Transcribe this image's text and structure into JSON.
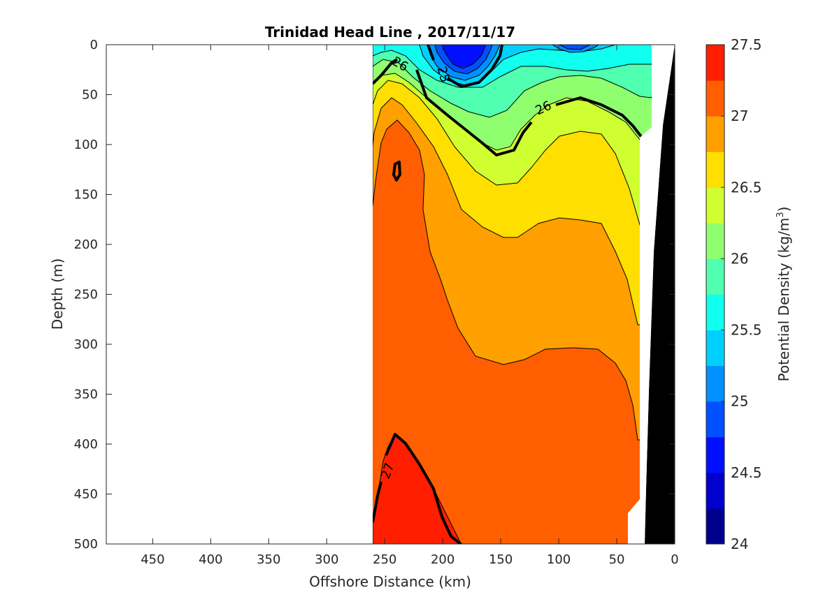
{
  "chart_data": {
    "type": "heatmap",
    "subtype": "filled contour section",
    "title": "Trinidad Head Line , 2017/11/17",
    "xlabel": "Offshore Distance (km)",
    "ylabel": "Depth (m)",
    "colorbar_label": "Potential Density (kg/m",
    "colorbar_label_sup": "3",
    "colorbar_label_close": ")",
    "xlim": [
      490,
      0
    ],
    "x_reversed": true,
    "ylim": [
      0,
      500
    ],
    "y_reversed": true,
    "xticks": [
      450,
      400,
      350,
      300,
      250,
      200,
      150,
      100,
      50,
      0
    ],
    "yticks": [
      0,
      50,
      100,
      150,
      200,
      250,
      300,
      350,
      400,
      450,
      500
    ],
    "clim": [
      24,
      27.5
    ],
    "contour_levels": [
      24,
      24.25,
      24.5,
      24.75,
      25,
      25.25,
      25.5,
      25.75,
      26,
      26.25,
      26.5,
      26.75,
      27,
      27.25,
      27.5
    ],
    "level_colors": [
      "#00008f",
      "#0000cf",
      "#0010ff",
      "#0050ff",
      "#0090ff",
      "#00d0ff",
      "#10ffef",
      "#50ffaf",
      "#90ff6f",
      "#cfff30",
      "#ffdf00",
      "#ff9f00",
      "#ff5f00",
      "#ff1f00",
      "#df0000"
    ],
    "colorbar_ticks": [
      24,
      24.5,
      25,
      25.5,
      26,
      26.5,
      27,
      27.5
    ],
    "colorbar_tick_labels": [
      "24",
      "24.5",
      "25",
      "25.5",
      "26",
      "26.5",
      "27",
      "27.5"
    ],
    "contour_labels": [
      {
        "text": "26",
        "x": 237,
        "y": 20,
        "angle": 30
      },
      {
        "text": "25",
        "x": 200,
        "y": 30,
        "angle": 75
      },
      {
        "text": "26",
        "x": 113,
        "y": 64,
        "angle": -25
      },
      {
        "text": "27",
        "x": 247,
        "y": 427,
        "angle": -70
      }
    ],
    "data_extent_km": [
      260,
      21
    ],
    "bottom_topography": "seafloor shown in black near shore (0-40 km)"
  }
}
